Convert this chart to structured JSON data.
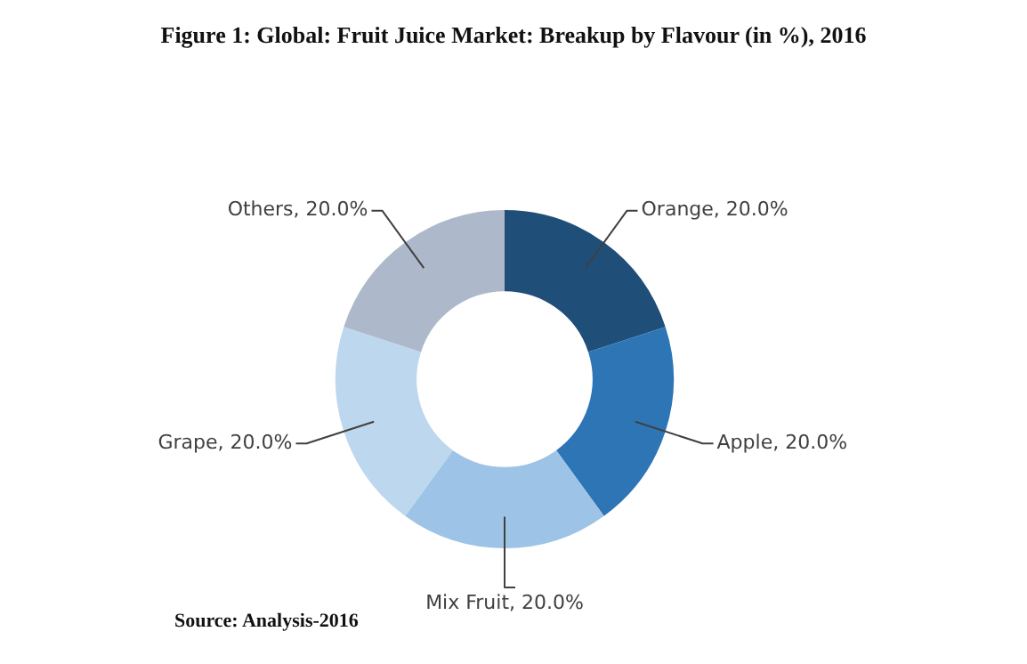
{
  "chart_data": {
    "type": "donut",
    "title": "Figure 1: Global: Fruit Juice Market: Breakup by Flavour (in %), 2016",
    "categories": [
      "Orange",
      "Apple",
      "Mix Fruit",
      "Grape",
      "Others"
    ],
    "values": [
      20,
      20,
      20,
      20,
      20
    ],
    "value_labels": [
      "20.0%",
      "20.0%",
      "20.0%",
      "20.0%",
      "20.0%"
    ],
    "colors": [
      "#1f4e79",
      "#2e75b6",
      "#9dc3e6",
      "#bdd7ee",
      "#adb9ca"
    ],
    "legend": false,
    "annotations": [
      "Source: Analysis-2016"
    ]
  }
}
